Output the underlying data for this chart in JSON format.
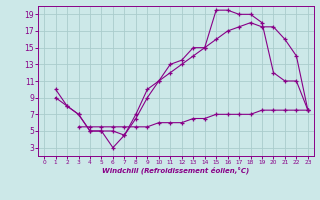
{
  "xlabel": "Windchill (Refroidissement éolien,°C)",
  "xlim": [
    -0.5,
    23.5
  ],
  "ylim": [
    2,
    20
  ],
  "xticks": [
    0,
    1,
    2,
    3,
    4,
    5,
    6,
    7,
    8,
    9,
    10,
    11,
    12,
    13,
    14,
    15,
    16,
    17,
    18,
    19,
    20,
    21,
    22,
    23
  ],
  "yticks": [
    3,
    5,
    7,
    9,
    11,
    13,
    15,
    17,
    19
  ],
  "bg_color": "#cce8e8",
  "line_color": "#880088",
  "grid_color": "#aacccc",
  "line1_x": [
    1,
    2,
    3,
    4,
    5,
    6,
    7,
    8,
    9,
    10,
    11,
    12,
    13,
    14,
    15,
    16,
    17,
    18,
    19,
    20,
    21,
    22,
    23
  ],
  "line1_y": [
    10,
    8,
    7,
    5,
    5,
    3,
    4.5,
    6.5,
    9,
    11,
    13,
    13.5,
    15,
    15,
    19.5,
    19.5,
    19,
    19,
    18,
    12,
    11,
    11,
    7.5
  ],
  "line2_x": [
    1,
    2,
    3,
    4,
    5,
    6,
    7,
    8,
    9,
    10,
    11,
    12,
    13,
    14,
    15,
    16,
    17,
    18,
    19,
    20,
    21,
    22,
    23
  ],
  "line2_y": [
    9,
    8,
    7,
    5,
    5,
    5,
    4.5,
    7,
    10,
    11,
    12,
    13,
    14,
    15,
    16,
    17,
    17.5,
    18,
    17.5,
    17.5,
    16,
    14,
    7.5
  ],
  "line3_x": [
    3,
    4,
    5,
    6,
    7,
    8,
    9,
    10,
    11,
    12,
    13,
    14,
    15,
    16,
    17,
    18,
    19,
    20,
    21,
    22,
    23
  ],
  "line3_y": [
    5.5,
    5.5,
    5.5,
    5.5,
    5.5,
    5.5,
    5.5,
    6,
    6,
    6,
    6.5,
    6.5,
    7,
    7,
    7,
    7,
    7.5,
    7.5,
    7.5,
    7.5,
    7.5
  ]
}
